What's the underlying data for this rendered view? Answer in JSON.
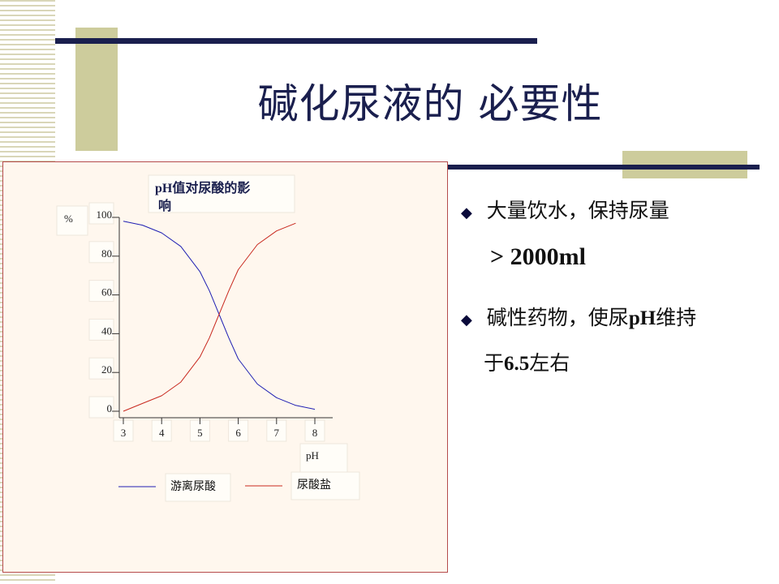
{
  "slide": {
    "title": "碱化尿液的 必要性",
    "colors": {
      "navy": "#1a1f4e",
      "olive": "#cdcc9c",
      "chart_border": "#b54b4b",
      "chart_bg": "#fff7ee"
    }
  },
  "bullets": [
    {
      "marker": "◆",
      "line1": "大量饮水，保持尿量",
      "line2": "> 2000ml"
    },
    {
      "marker": "◆",
      "line1_a": "碱性药物，使尿",
      "line1_b": "pH",
      "line1_c": "维持",
      "line2_a": "于",
      "line2_b": "6.5",
      "line2_c": "左右"
    }
  ],
  "chart_data": {
    "type": "line",
    "title": "pH值对尿酸的影响",
    "title_line1": "pH值对尿酸的影",
    "title_line2": "响",
    "xlabel": "pH",
    "ylabel": "%",
    "xlim": [
      3,
      8
    ],
    "ylim": [
      0,
      100
    ],
    "xticks": [
      "3",
      "4",
      "5",
      "6",
      "7",
      "8"
    ],
    "yticks": [
      "0",
      "20",
      "40",
      "60",
      "80",
      "100"
    ],
    "legend_position": "bottom",
    "series": [
      {
        "name": "游离尿酸",
        "color": "#1f1fb3",
        "x": [
          3.0,
          3.5,
          4.0,
          4.5,
          5.0,
          5.25,
          5.5,
          5.75,
          6.0,
          6.5,
          7.0,
          7.5,
          8.0
        ],
        "y": [
          98,
          96,
          92,
          85,
          72,
          62,
          50,
          38,
          27,
          14,
          7,
          3,
          1
        ]
      },
      {
        "name": "尿酸盐",
        "color": "#c8281e",
        "x": [
          3.0,
          3.5,
          4.0,
          4.5,
          5.0,
          5.25,
          5.5,
          5.75,
          6.0,
          6.5,
          7.0,
          7.5
        ],
        "y": [
          0,
          4,
          8,
          15,
          28,
          38,
          50,
          62,
          73,
          86,
          93,
          97
        ]
      }
    ]
  }
}
